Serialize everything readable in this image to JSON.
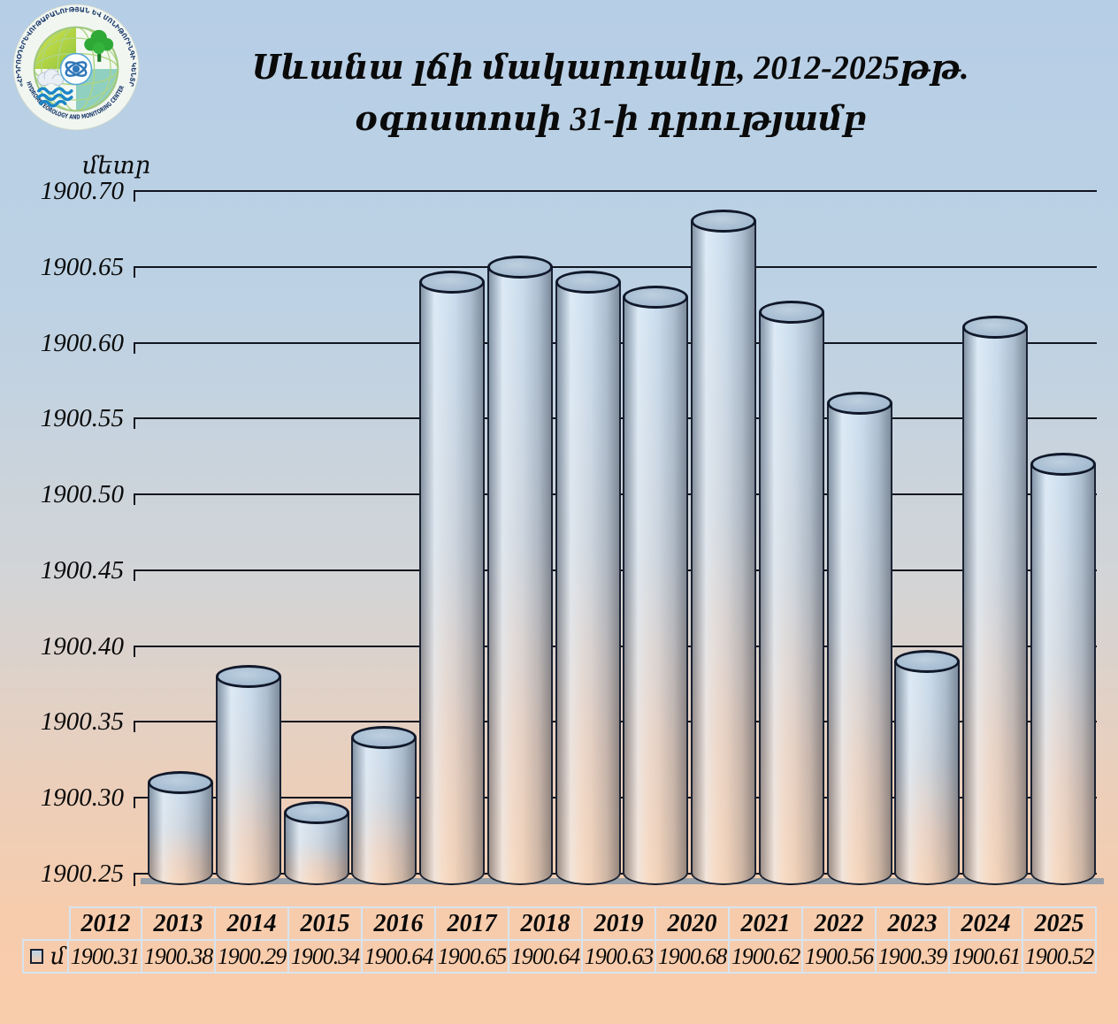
{
  "logo": {
    "armenian_text": "«ՀԻԴՐՈՕԴԵՐԵՎՈՒԹԱԲԱՆՈՒԹՅԱՆ ԵՎ ՄՈՆԻԹՈՐԻՆԳԻ ԿԵՆՏՐՈՆ»",
    "english_text": "HYDROMETEOROLOGY AND MONITORING CENTER"
  },
  "title": {
    "line1": "Սևանա լճի մակարդակը, 2012-2025թթ.",
    "line2": "օգոստոսի 31-ի դրությամբ"
  },
  "chart_data": {
    "type": "bar",
    "subtype": "3d-cylinder",
    "title": "Սևանա լճի մակարդակը, 2012-2025թթ. օգոստոսի 31-ի դրությամբ",
    "ylabel": "մետր",
    "xlabel": "",
    "categories": [
      "2012",
      "2013",
      "2014",
      "2015",
      "2016",
      "2017",
      "2018",
      "2019",
      "2020",
      "2021",
      "2022",
      "2023",
      "2024",
      "2025"
    ],
    "values": [
      1900.31,
      1900.38,
      1900.29,
      1900.34,
      1900.64,
      1900.65,
      1900.64,
      1900.63,
      1900.68,
      1900.62,
      1900.56,
      1900.39,
      1900.61,
      1900.52
    ],
    "ylim": [
      1900.25,
      1900.7
    ],
    "ytick_step": 0.05,
    "yticks": [
      1900.7,
      1900.65,
      1900.6,
      1900.55,
      1900.5,
      1900.45,
      1900.4,
      1900.35,
      1900.3,
      1900.25
    ],
    "grid": true,
    "legend_label": "մ",
    "data_table": true,
    "legend_position": "bottom-left-of-table"
  },
  "colors": {
    "background_top": "#b6cee6",
    "background_bottom": "#f8cdab",
    "gridline": "#10151f",
    "bar_outline": "#1a2232",
    "bar_top_fill": "#a6bcd1",
    "bar_gradient_top": "#c8dcee",
    "bar_gradient_bottom": "#f5d1b4",
    "axis_shadow": "#9aa1a8",
    "table_grid": "#d6e4f0",
    "text": "#0a0a0a"
  }
}
